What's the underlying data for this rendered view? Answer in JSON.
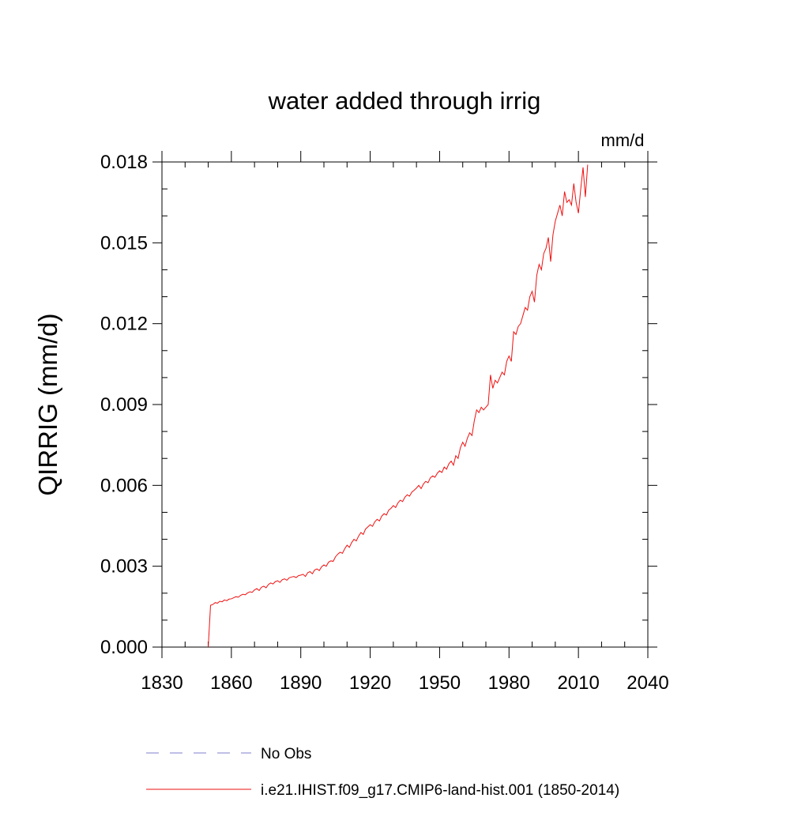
{
  "chart_data": {
    "type": "line",
    "title": "water added through irrig",
    "units": "mm/d",
    "y_label": "QIRRIG  (mm/d)",
    "x": [
      1850,
      1851,
      1852,
      1853,
      1854,
      1855,
      1856,
      1857,
      1858,
      1859,
      1860,
      1861,
      1862,
      1863,
      1864,
      1865,
      1866,
      1867,
      1868,
      1869,
      1870,
      1871,
      1872,
      1873,
      1874,
      1875,
      1876,
      1877,
      1878,
      1879,
      1880,
      1881,
      1882,
      1883,
      1884,
      1885,
      1886,
      1887,
      1888,
      1889,
      1890,
      1891,
      1892,
      1893,
      1894,
      1895,
      1896,
      1897,
      1898,
      1899,
      1900,
      1901,
      1902,
      1903,
      1904,
      1905,
      1906,
      1907,
      1908,
      1909,
      1910,
      1911,
      1912,
      1913,
      1914,
      1915,
      1916,
      1917,
      1918,
      1919,
      1920,
      1921,
      1922,
      1923,
      1924,
      1925,
      1926,
      1927,
      1928,
      1929,
      1930,
      1931,
      1932,
      1933,
      1934,
      1935,
      1936,
      1937,
      1938,
      1939,
      1940,
      1941,
      1942,
      1943,
      1944,
      1945,
      1946,
      1947,
      1948,
      1949,
      1950,
      1951,
      1952,
      1953,
      1954,
      1955,
      1956,
      1957,
      1958,
      1959,
      1960,
      1961,
      1962,
      1963,
      1964,
      1965,
      1966,
      1967,
      1968,
      1969,
      1970,
      1971,
      1972,
      1973,
      1974,
      1975,
      1976,
      1977,
      1978,
      1979,
      1980,
      1981,
      1982,
      1983,
      1984,
      1985,
      1986,
      1987,
      1988,
      1989,
      1990,
      1991,
      1992,
      1993,
      1994,
      1995,
      1996,
      1997,
      1998,
      1999,
      2000,
      2001,
      2002,
      2003,
      2004,
      2005,
      2006,
      2007,
      2008,
      2009,
      2010,
      2011,
      2012,
      2013,
      2014
    ],
    "series": [
      {
        "name": "i.e21.IHIST.f09_g17.CMIP6-land-hist.001 (1850-2014)",
        "color": "#ee1111",
        "values": [
          0,
          0.00155,
          0.00158,
          0.00165,
          0.00163,
          0.0017,
          0.00168,
          0.00175,
          0.00172,
          0.00178,
          0.00179,
          0.00183,
          0.00187,
          0.00185,
          0.00192,
          0.00196,
          0.00194,
          0.00201,
          0.00205,
          0.00203,
          0.00212,
          0.00217,
          0.0021,
          0.00222,
          0.00226,
          0.0022,
          0.00232,
          0.00238,
          0.00234,
          0.00243,
          0.00246,
          0.0024,
          0.0025,
          0.00253,
          0.00248,
          0.00257,
          0.0026,
          0.00262,
          0.00258,
          0.00265,
          0.00267,
          0.0027,
          0.00262,
          0.00276,
          0.0028,
          0.00272,
          0.00286,
          0.0029,
          0.00284,
          0.00298,
          0.00305,
          0.003,
          0.00315,
          0.0032,
          0.00318,
          0.00335,
          0.00345,
          0.00352,
          0.00348,
          0.00365,
          0.00378,
          0.0037,
          0.00388,
          0.004,
          0.00394,
          0.00412,
          0.00425,
          0.00418,
          0.00438,
          0.00446,
          0.00454,
          0.00448,
          0.00465,
          0.00474,
          0.00468,
          0.00486,
          0.00495,
          0.0049,
          0.00508,
          0.00515,
          0.00525,
          0.00518,
          0.00535,
          0.00545,
          0.0054,
          0.00556,
          0.00565,
          0.0056,
          0.00575,
          0.00582,
          0.0059,
          0.006,
          0.00588,
          0.00605,
          0.00615,
          0.0061,
          0.00628,
          0.00635,
          0.0063,
          0.00645,
          0.00654,
          0.00648,
          0.00668,
          0.0066,
          0.0068,
          0.0069,
          0.00675,
          0.0071,
          0.007,
          0.0074,
          0.0076,
          0.00745,
          0.00775,
          0.00795,
          0.00785,
          0.0084,
          0.0088,
          0.0087,
          0.0089,
          0.0088,
          0.0089,
          0.009,
          0.0101,
          0.0096,
          0.0099,
          0.0098,
          0.01,
          0.0102,
          0.0101,
          0.0106,
          0.0108,
          0.0106,
          0.0117,
          0.0116,
          0.0119,
          0.012,
          0.0123,
          0.0126,
          0.0125,
          0.013,
          0.0132,
          0.0128,
          0.0138,
          0.0142,
          0.014,
          0.0146,
          0.0148,
          0.0152,
          0.0143,
          0.0153,
          0.0158,
          0.0161,
          0.0164,
          0.016,
          0.0169,
          0.0165,
          0.0166,
          0.0164,
          0.0172,
          0.0165,
          0.0161,
          0.017,
          0.0178,
          0.0167,
          0.0179
        ]
      }
    ],
    "legend": [
      {
        "name": "No Obs",
        "color": "#7f7fcc",
        "style": "dashed"
      }
    ],
    "xlim": [
      1830,
      2040
    ],
    "xticks": [
      1830,
      1860,
      1890,
      1920,
      1950,
      1980,
      2010,
      2040
    ],
    "ylim": [
      0,
      0.018
    ],
    "yticks": [
      {
        "value": 0,
        "label": "0.000"
      },
      {
        "value": 0.003,
        "label": "0.003"
      },
      {
        "value": 0.006,
        "label": "0.006"
      },
      {
        "value": 0.009,
        "label": "0.009"
      },
      {
        "value": 0.012,
        "label": "0.012"
      },
      {
        "value": 0.015,
        "label": "0.015"
      },
      {
        "value": 0.018,
        "label": "0.018"
      }
    ],
    "grid": false
  }
}
